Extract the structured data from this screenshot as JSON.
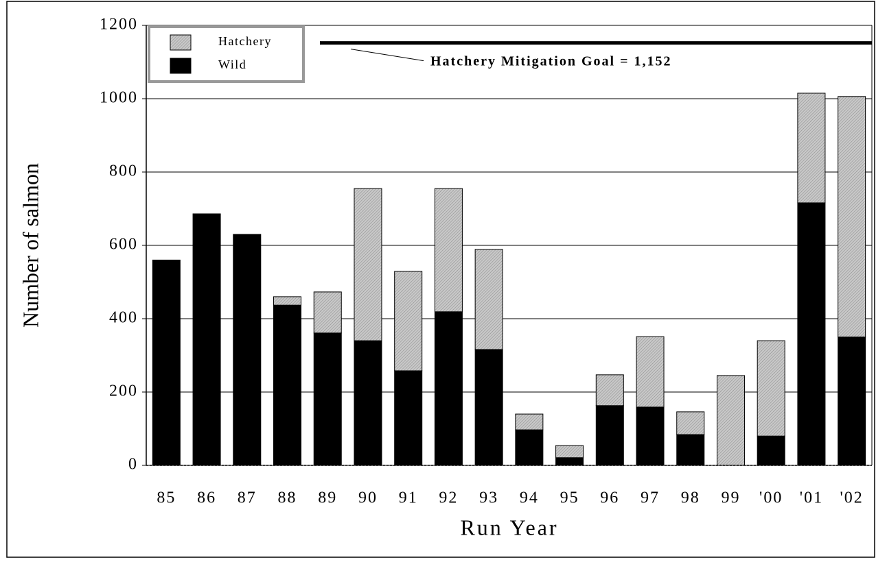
{
  "chart_data": {
    "type": "stacked_bar",
    "x_label": "Run Year",
    "y_label": "Number of salmon",
    "categories": [
      "85",
      "86",
      "87",
      "88",
      "89",
      "90",
      "91",
      "92",
      "93",
      "94",
      "95",
      "96",
      "97",
      "98",
      "99",
      "'00",
      "'01",
      "'02"
    ],
    "series": [
      {
        "name": "Wild",
        "color": "#000000",
        "values": [
          560,
          686,
          630,
          437,
          361,
          340,
          258,
          419,
          316,
          97,
          21,
          163,
          159,
          84,
          0,
          80,
          716,
          350
        ]
      },
      {
        "name": "Hatchery",
        "color": "#c8c8c8",
        "values": [
          0,
          0,
          0,
          23,
          112,
          415,
          271,
          336,
          273,
          43,
          33,
          84,
          192,
          62,
          245,
          260,
          299,
          656
        ]
      }
    ],
    "goal": 1152,
    "goal_label": "Hatchery Mitigation Goal = 1,152",
    "ylim": [
      0,
      1200
    ],
    "yticks": [
      0,
      200,
      400,
      600,
      800,
      1000,
      1200
    ],
    "grid": true,
    "legend": "upper left"
  }
}
